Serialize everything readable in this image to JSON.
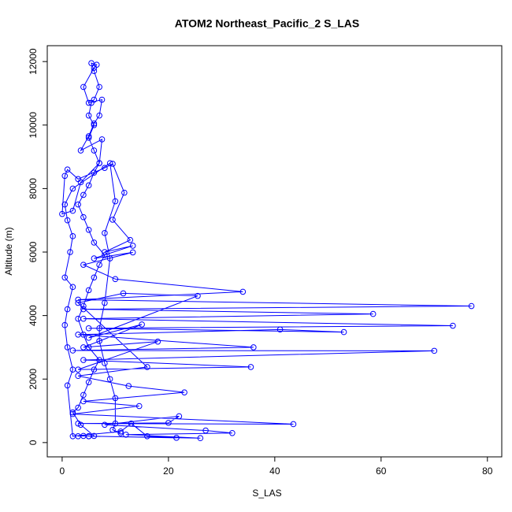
{
  "chart_data": {
    "type": "line",
    "title": "ATOM2 Northeast_Pacific_2 S_LAS",
    "x_label": "S_LAS",
    "y_label": "Altitude (m)",
    "color": "#0000ff",
    "markers": true,
    "xlim": [
      -2.8,
      82.7
    ],
    "ylim": [
      -450,
      12500
    ],
    "xticks": [
      0,
      20,
      40,
      60,
      80
    ],
    "yticks": [
      0,
      2000,
      4000,
      6000,
      8000,
      10000,
      12000
    ],
    "x": [
      3,
      4,
      5,
      6,
      3.5,
      2,
      3,
      4,
      5,
      6,
      7,
      5,
      4,
      3,
      4,
      5,
      6,
      7,
      8,
      6,
      5,
      4,
      3,
      4,
      5,
      6,
      7,
      6,
      5,
      6,
      5,
      5.5,
      6,
      7,
      6,
      5.5,
      6.5,
      6,
      4,
      5,
      7.5,
      7,
      6,
      5,
      3.5,
      7.5,
      7,
      3.5,
      2,
      0,
      0.5,
      1,
      3,
      8,
      9.5,
      11.7,
      9.5,
      12.8,
      8,
      13.3,
      6,
      13.3,
      4,
      10,
      34,
      3,
      77,
      4,
      58.5,
      4,
      73.5,
      5,
      53,
      41,
      3,
      36,
      2,
      70,
      4,
      35.5,
      3,
      18,
      4,
      15,
      5,
      25.5,
      11.5,
      3,
      16,
      3,
      12.5,
      23,
      4,
      14.5,
      2,
      43.5,
      3,
      20,
      22,
      8,
      27,
      32,
      12,
      26,
      5,
      21.5,
      16,
      13,
      11,
      2,
      1,
      2,
      1,
      0.5,
      1,
      2,
      0.5,
      1.5,
      2,
      1,
      0.5,
      2,
      9,
      10,
      8,
      9,
      8,
      7,
      7,
      8,
      9,
      10,
      10,
      9.5,
      11
    ],
    "values": [
      200,
      210,
      200,
      210,
      560,
      950,
      1100,
      1500,
      1900,
      2300,
      2600,
      3000,
      3400,
      3900,
      4300,
      4800,
      5200,
      5600,
      5900,
      6300,
      6700,
      7100,
      7500,
      7800,
      8100,
      8500,
      8800,
      9200,
      9600,
      10000,
      10300,
      10700,
      10800,
      11200,
      11700,
      11950,
      11900,
      11800,
      11200,
      10700,
      10800,
      10300,
      10050,
      9650,
      9200,
      9550,
      8800,
      8200,
      7300,
      7200,
      8400,
      8600,
      8300,
      8650,
      8780,
      7870,
      7020,
      6380,
      6000,
      6200,
      5800,
      5990,
      5600,
      5150,
      4750,
      4500,
      4300,
      4200,
      4050,
      3900,
      3680,
      3600,
      3480,
      3560,
      3400,
      3000,
      2900,
      2890,
      2600,
      2380,
      2300,
      3180,
      3000,
      3720,
      3300,
      4620,
      4700,
      4400,
      2380,
      2100,
      1780,
      1580,
      1300,
      1150,
      900,
      580,
      600,
      620,
      830,
      560,
      380,
      300,
      250,
      140,
      200,
      150,
      200,
      600,
      350,
      200,
      1800,
      2300,
      3000,
      3700,
      4200,
      4900,
      5200,
      6000,
      6500,
      7000,
      7500,
      8000,
      8800,
      7600,
      6600,
      5800,
      4400,
      3600,
      3200,
      2500,
      2000,
      1400,
      600,
      400,
      300
    ]
  }
}
